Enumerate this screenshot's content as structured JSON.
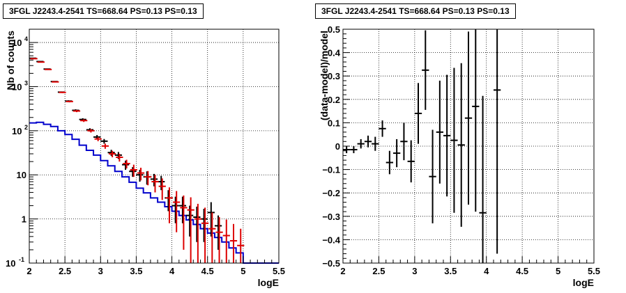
{
  "chart_data": [
    {
      "type": "histogram",
      "title": "3FGL J2243.4-2541 TS=668.64 PS=0.13 PS=0.13",
      "xlabel": "logE",
      "ylabel": "Nb of counts",
      "xlim": [
        2,
        5.5
      ],
      "ylim": [
        0.1,
        20000
      ],
      "log_y": true,
      "grid": true,
      "x_ticks": [
        "2",
        "2.5",
        "3",
        "3.5",
        "4",
        "4.5",
        "5",
        "5.5"
      ],
      "y_ticks": [
        "10^-1",
        "1",
        "10",
        "10^2",
        "10^3",
        "10^4"
      ],
      "bin_width": 0.1,
      "model_bin_width": 0.1,
      "series": [
        {
          "name": "",
          "style": "steps",
          "color": "#0000cc",
          "x_low": [
            2.0,
            2.1,
            2.2,
            2.3,
            2.4,
            2.5,
            2.6,
            2.7,
            2.8,
            2.9,
            3.0,
            3.1,
            3.2,
            3.3,
            3.4,
            3.5,
            3.6,
            3.7,
            3.8,
            3.9,
            4.0,
            4.1,
            4.2,
            4.3,
            4.4,
            4.5,
            4.6,
            4.7,
            4.8,
            4.9,
            5.0,
            5.1,
            5.2,
            5.3,
            5.4
          ],
          "values": [
            150,
            155,
            140,
            125,
            100,
            82,
            64,
            47,
            36,
            28,
            21,
            16,
            12,
            9,
            6.8,
            5.0,
            3.9,
            3.0,
            2.4,
            1.9,
            1.5,
            1.2,
            0.95,
            0.75,
            0.6,
            0.48,
            0.38,
            0.3,
            0.22,
            0.17,
            0.1,
            0.1,
            0.1,
            0.1,
            0.1
          ]
        },
        {
          "name": "",
          "style": "errorbars",
          "color": "#000000",
          "x": [
            2.05,
            2.15,
            2.25,
            2.35,
            2.45,
            2.55,
            2.65,
            2.75,
            2.85,
            2.95,
            3.05,
            3.15,
            3.25,
            3.35,
            3.45,
            3.55,
            3.65,
            3.75,
            3.85,
            3.95,
            4.05,
            4.15,
            4.25,
            4.35,
            4.45,
            4.55,
            4.65
          ],
          "y": [
            4400,
            3700,
            2500,
            1300,
            750,
            470,
            290,
            180,
            105,
            72,
            58,
            32,
            28,
            17,
            12,
            10,
            9,
            8,
            7,
            3,
            2,
            2,
            1.2,
            1.1,
            1.0,
            1.4,
            0.7
          ],
          "yerr_low": [
            60,
            55,
            45,
            33,
            25,
            20,
            16,
            12,
            9,
            8,
            7,
            5,
            5,
            4,
            3,
            3,
            3,
            2.5,
            2.5,
            1.5,
            1.2,
            1.2,
            0.8,
            0.8,
            0.7,
            1.0,
            0.5
          ],
          "yerr_high": [
            60,
            55,
            45,
            33,
            25,
            20,
            16,
            12,
            9,
            8,
            7,
            5,
            5,
            4,
            3,
            3,
            3,
            2.5,
            2.5,
            1.5,
            1.2,
            1.2,
            0.8,
            0.8,
            0.7,
            1.0,
            0.5
          ]
        },
        {
          "name": "",
          "style": "errorbars",
          "color": "#dd0000",
          "x": [
            2.05,
            2.15,
            2.25,
            2.35,
            2.45,
            2.55,
            2.65,
            2.75,
            2.85,
            2.95,
            3.05,
            3.15,
            3.25,
            3.35,
            3.45,
            3.55,
            3.65,
            3.75,
            3.85,
            3.95,
            4.05,
            4.15,
            4.25,
            4.35,
            4.45,
            4.55,
            4.65,
            4.75,
            4.85,
            4.95
          ],
          "y": [
            4300,
            3600,
            2450,
            1280,
            740,
            460,
            280,
            170,
            100,
            65,
            45,
            30,
            25,
            18,
            13,
            11,
            9,
            7,
            5.5,
            3.0,
            2.4,
            1.8,
            1.6,
            1.0,
            0.8,
            0.6,
            0.5,
            0.42,
            0.32,
            0.25
          ],
          "yerr_low": [
            60,
            55,
            45,
            33,
            25,
            20,
            16,
            12,
            9,
            7,
            6,
            5,
            5,
            4,
            4,
            3.5,
            3.2,
            3,
            2.8,
            2.2,
            1.9,
            1.6,
            1.5,
            0.95,
            0.78,
            0.58,
            0.48,
            0.4,
            0.3,
            0.22
          ],
          "yerr_high": [
            60,
            55,
            45,
            33,
            25,
            20,
            16,
            12,
            9,
            7,
            6,
            5,
            5,
            4,
            4,
            3.5,
            3.2,
            3,
            2.8,
            2.2,
            1.9,
            1.6,
            1.5,
            1.2,
            1.0,
            0.8,
            0.6,
            0.55,
            0.45,
            0.35
          ]
        }
      ]
    },
    {
      "type": "scatter",
      "title": "3FGL J2243.4-2541 TS=668.64 PS=0.13 PS=0.13",
      "xlabel": "logE",
      "ylabel": "(data-model)/model",
      "xlim": [
        2,
        5.5
      ],
      "ylim": [
        -0.5,
        0.5
      ],
      "grid": true,
      "x_ticks": [
        "2",
        "2.5",
        "3",
        "3.5",
        "4",
        "4.5",
        "5",
        "5.5"
      ],
      "y_ticks": [
        "-0.5",
        "-0.4",
        "-0.3",
        "-0.2",
        "-0.1",
        "0",
        "0.1",
        "0.2",
        "0.3",
        "0.4",
        "0.5"
      ],
      "bin_width": 0.1,
      "series": [
        {
          "name": "",
          "style": "errorbars",
          "color": "#000000",
          "x": [
            2.05,
            2.15,
            2.25,
            2.35,
            2.45,
            2.55,
            2.65,
            2.75,
            2.85,
            2.95,
            3.05,
            3.15,
            3.25,
            3.35,
            3.45,
            3.55,
            3.65,
            3.75,
            3.85,
            3.95,
            4.15
          ],
          "y": [
            -0.015,
            -0.015,
            0.01,
            0.02,
            0.01,
            0.075,
            -0.07,
            -0.03,
            0.02,
            -0.065,
            0.14,
            0.325,
            -0.13,
            0.06,
            0.045,
            0.025,
            0.005,
            0.12,
            0.17,
            -0.285,
            0.24
          ],
          "yerr": [
            0.015,
            0.015,
            0.02,
            0.025,
            0.03,
            0.035,
            0.05,
            0.06,
            0.08,
            0.09,
            0.13,
            0.17,
            0.2,
            0.22,
            0.26,
            0.31,
            0.35,
            0.37,
            0.45,
            0.5,
            0.7
          ]
        }
      ]
    }
  ]
}
